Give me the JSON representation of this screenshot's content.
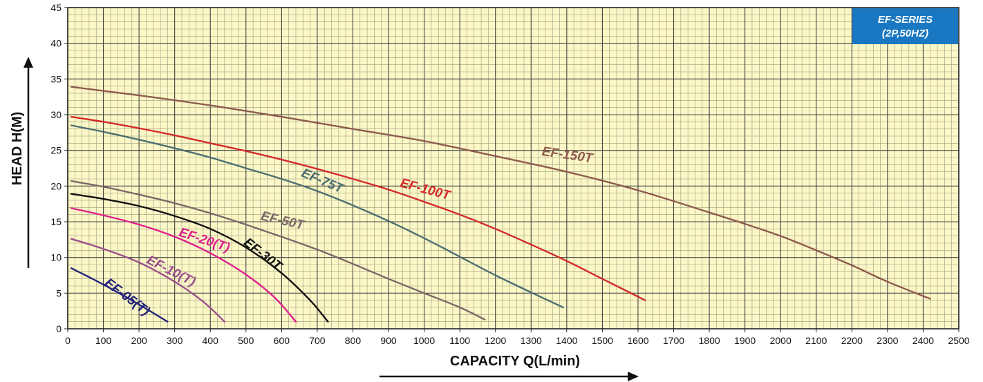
{
  "chart_data": {
    "type": "line",
    "title": "",
    "badge": {
      "line1": "EF-SERIES",
      "line2": "(2P,50HZ)",
      "color": "#1a78c2"
    },
    "xlabel": "CAPACITY  Q(L/min)",
    "ylabel": "HEAD  H(M)",
    "xlim": [
      0,
      2500
    ],
    "ylim": [
      0,
      45
    ],
    "xticks": [
      0,
      100,
      200,
      300,
      400,
      500,
      600,
      700,
      800,
      900,
      1000,
      1100,
      1200,
      1300,
      1400,
      1500,
      1600,
      1700,
      1800,
      1900,
      2000,
      2100,
      2200,
      2300,
      2400,
      2500
    ],
    "yticks": [
      0,
      5,
      10,
      15,
      20,
      25,
      30,
      35,
      40,
      45
    ],
    "grid": true,
    "background": "#fbf7c6",
    "series": [
      {
        "name": "EF-05(T)",
        "color": "#23237a",
        "x": [
          10,
          100,
          200,
          280
        ],
        "y": [
          8.5,
          6.2,
          3.4,
          1.0
        ]
      },
      {
        "name": "EF-10(T)",
        "color": "#9b4f8c",
        "x": [
          10,
          100,
          200,
          300,
          380,
          440
        ],
        "y": [
          12.6,
          11.2,
          9.3,
          6.6,
          3.8,
          1.0
        ]
      },
      {
        "name": "EF-20(T)",
        "color": "#e0208c",
        "x": [
          10,
          100,
          200,
          300,
          400,
          500,
          580,
          640
        ],
        "y": [
          16.9,
          15.9,
          14.6,
          12.9,
          10.6,
          7.6,
          4.4,
          1.0
        ]
      },
      {
        "name": "EF-30T",
        "color": "#111111",
        "x": [
          10,
          100,
          200,
          300,
          400,
          500,
          600,
          680,
          730
        ],
        "y": [
          18.9,
          18.2,
          17.2,
          15.8,
          14.0,
          11.4,
          7.8,
          4.0,
          1.0
        ]
      },
      {
        "name": "EF-50T",
        "color": "#7b6868",
        "x": [
          10,
          100,
          200,
          300,
          400,
          500,
          600,
          700,
          800,
          900,
          1000,
          1100,
          1170
        ],
        "y": [
          20.7,
          19.9,
          18.8,
          17.6,
          16.2,
          14.6,
          12.9,
          11.1,
          9.1,
          7.0,
          5.0,
          3.0,
          1.3
        ]
      },
      {
        "name": "EF-75T",
        "color": "#4e6e72",
        "x": [
          10,
          100,
          200,
          300,
          400,
          500,
          600,
          700,
          800,
          900,
          1000,
          1100,
          1200,
          1300,
          1390
        ],
        "y": [
          28.5,
          27.6,
          26.5,
          25.3,
          24.0,
          22.5,
          21.0,
          19.3,
          17.3,
          15.1,
          12.7,
          10.1,
          7.5,
          5.1,
          3.0
        ]
      },
      {
        "name": "EF-100T",
        "color": "#d42a2a",
        "x": [
          10,
          100,
          200,
          300,
          400,
          500,
          600,
          700,
          800,
          900,
          1000,
          1100,
          1200,
          1300,
          1400,
          1500,
          1620
        ],
        "y": [
          29.7,
          29.0,
          28.1,
          27.1,
          26.0,
          24.9,
          23.7,
          22.4,
          21.0,
          19.5,
          17.8,
          16.0,
          14.0,
          11.8,
          9.5,
          7.0,
          4.0
        ]
      },
      {
        "name": "EF-150T",
        "color": "#8f5a4e",
        "x": [
          10,
          200,
          400,
          600,
          800,
          1000,
          1200,
          1400,
          1600,
          1800,
          1900,
          2000,
          2100,
          2200,
          2300,
          2420
        ],
        "y": [
          33.9,
          32.7,
          31.3,
          29.7,
          28.0,
          26.3,
          24.2,
          22.0,
          19.4,
          16.3,
          14.7,
          13.0,
          11.0,
          8.9,
          6.6,
          4.2
        ]
      }
    ],
    "labels": [
      {
        "text": "EF-05(T)",
        "series": 0,
        "x": 160,
        "y": 4.0,
        "angle": 37
      },
      {
        "text": "EF-10(T)",
        "series": 1,
        "x": 285,
        "y": 7.6,
        "angle": 27
      },
      {
        "text": "EF-20(T)",
        "series": 2,
        "x": 380,
        "y": 11.9,
        "angle": 18
      },
      {
        "text": "EF-30T",
        "series": 3,
        "x": 540,
        "y": 10.0,
        "angle": 38
      },
      {
        "text": "EF-50T",
        "series": 4,
        "x": 600,
        "y": 14.6,
        "angle": 13
      },
      {
        "text": "EF-75T",
        "series": 5,
        "x": 710,
        "y": 20.2,
        "angle": 23
      },
      {
        "text": "EF-100T",
        "series": 6,
        "x": 1000,
        "y": 19.0,
        "angle": 15
      },
      {
        "text": "EF-150T",
        "series": 7,
        "x": 1400,
        "y": 23.8,
        "angle": 8
      }
    ]
  }
}
